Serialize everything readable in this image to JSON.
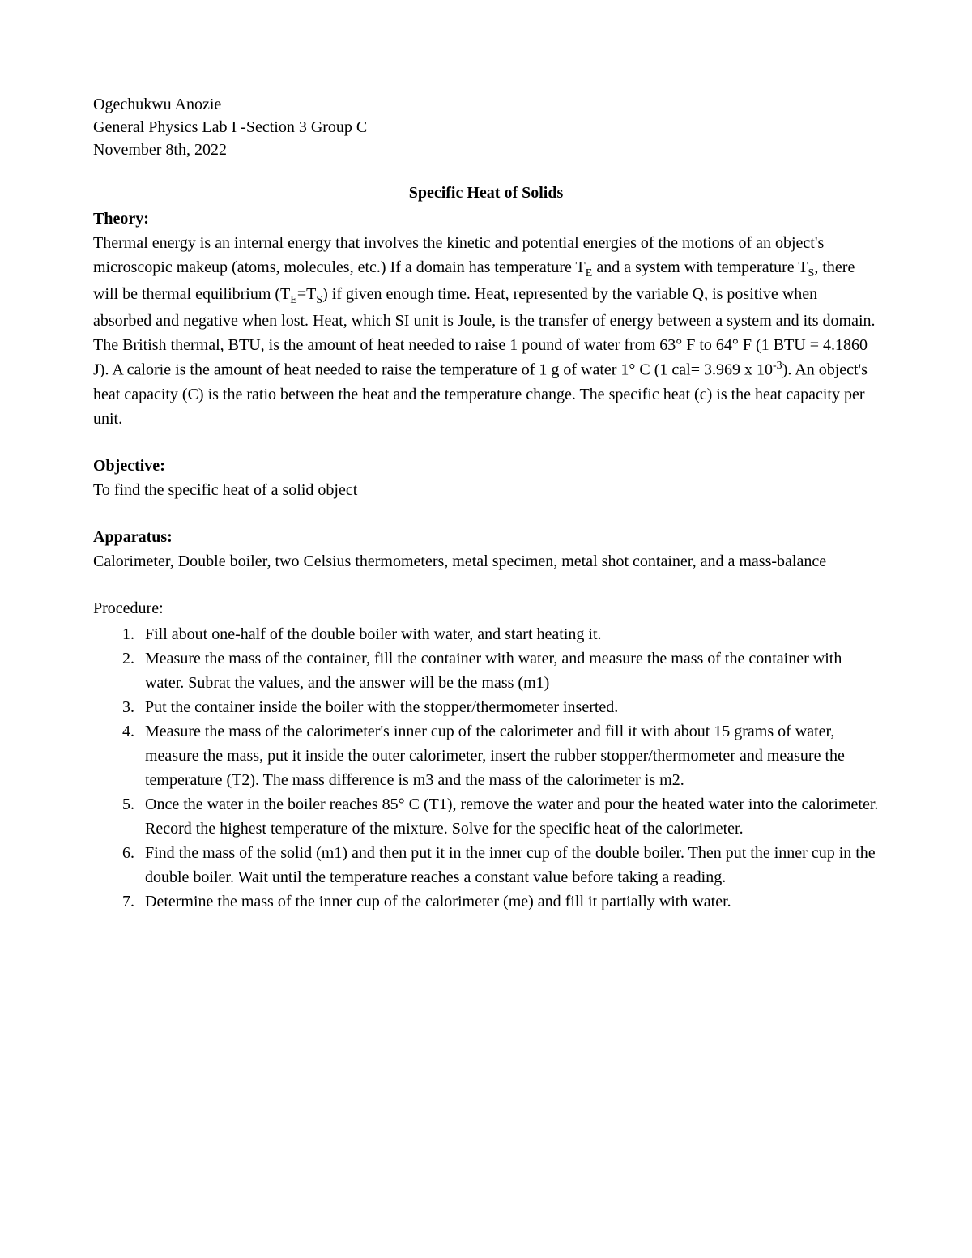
{
  "header": {
    "author": "Ogechukwu Anozie",
    "course": "General Physics Lab I -Section 3 Group C",
    "date": "November 8th, 2022"
  },
  "title": "Specific Heat of Solids",
  "sections": {
    "theory": {
      "heading": "Theory:",
      "body_html": "Thermal energy is an internal energy that involves the kinetic and potential energies of the motions of an object's microscopic makeup  (atoms, molecules, etc.) If a domain has temperature T<sub>E</sub>  and a system with temperature T<sub>S</sub>, there will be thermal equilibrium (T<sub>E</sub>=T<sub>S</sub>) if given enough time. Heat, represented by the variable Q, is positive when absorbed and negative when lost. Heat, which SI unit is Joule, is the transfer of energy between a system and its domain. The British thermal, BTU, is the amount of heat needed to raise 1 pound of water from 63° F to 64° F (1 BTU = 4.1860 J). A calorie is the amount of heat needed to raise the temperature of 1 g of water 1° C (1 cal= 3.969 x 10<sup>-3</sup>). An object's heat capacity (C) is the ratio between the heat and the temperature change. The specific heat (c) is the heat capacity per unit."
    },
    "objective": {
      "heading": "Objective:",
      "body": "To find the specific heat of a solid object"
    },
    "apparatus": {
      "heading": "Apparatus:",
      "body": "Calorimeter, Double boiler, two Celsius thermometers, metal specimen, metal shot container, and a mass-balance"
    },
    "procedure": {
      "label": "Procedure:",
      "items": [
        "Fill about one-half of the double boiler with water, and start heating it.",
        "Measure the mass of the container, fill the container with water, and measure the mass of the container with water. Subrat the values, and the answer will be the mass (m1)",
        "Put the container inside the boiler with the stopper/thermometer inserted.",
        "Measure the mass of the calorimeter's inner cup of the calorimeter and fill it with about 15 grams of water, measure the mass, put it inside the outer calorimeter, insert the rubber stopper/thermometer and measure the temperature (T2). The mass difference is m3 and the mass of the calorimeter is m2.",
        "Once the water in the boiler reaches 85° C (T1), remove the water and pour the heated water into the calorimeter. Record the highest temperature of the mixture. Solve for the specific heat of the calorimeter.",
        "Find the mass of the solid (m1) and then put it in the inner cup of the double boiler. Then put the inner cup in the double boiler. Wait until the temperature reaches a constant value before taking a reading.",
        "Determine the mass of the inner cup of the calorimeter (me) and fill it partially with water."
      ]
    }
  }
}
